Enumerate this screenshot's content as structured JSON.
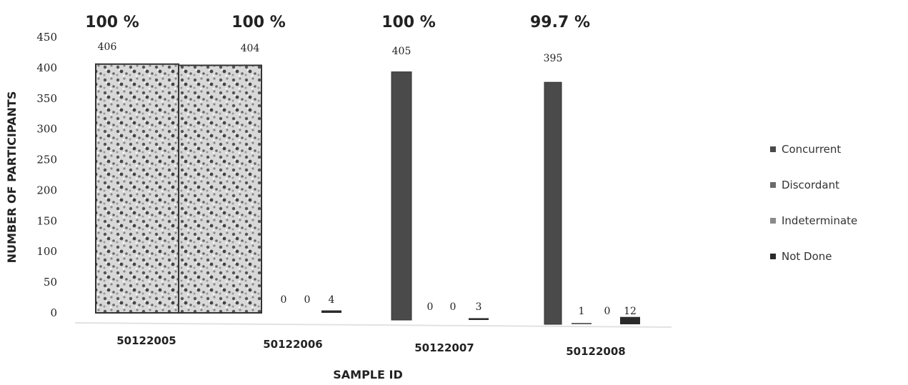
{
  "chart_data": {
    "type": "bar",
    "title": "",
    "xlabel": "SAMPLE ID",
    "ylabel": "NUMBER OF PARTICIPANTS",
    "ylim": [
      0,
      450
    ],
    "yticks": [
      0,
      50,
      100,
      150,
      200,
      250,
      300,
      350,
      400,
      450
    ],
    "categories": [
      "50122005",
      "50122006",
      "50122007",
      "50122008"
    ],
    "top_labels": [
      "100 %",
      "100 %",
      "100 %",
      "99.7 %"
    ],
    "series": [
      {
        "name": "Concurrent",
        "values": [
          406,
          404,
          405,
          395
        ],
        "color": "#4a4a4a"
      },
      {
        "name": "Discordant",
        "values": [
          0,
          0,
          0,
          1
        ],
        "color": "#6a6a6a"
      },
      {
        "name": "Indeterminate",
        "values": [
          0,
          0,
          0,
          0
        ],
        "color": "#8a8a8a"
      },
      {
        "name": "Not Done",
        "values": [
          0,
          4,
          3,
          12
        ],
        "color": "#2a2a2a"
      }
    ],
    "data_labels": [
      {
        "category": 0,
        "series": 0,
        "text": "406"
      },
      {
        "category": 1,
        "series": 0,
        "text": "404"
      },
      {
        "category": 1,
        "series": 1,
        "text": "0"
      },
      {
        "category": 1,
        "series": 2,
        "text": "0"
      },
      {
        "category": 1,
        "series": 3,
        "text": "4"
      },
      {
        "category": 2,
        "series": 0,
        "text": "405"
      },
      {
        "category": 2,
        "series": 1,
        "text": "0"
      },
      {
        "category": 2,
        "series": 2,
        "text": "0"
      },
      {
        "category": 2,
        "series": 3,
        "text": "3"
      },
      {
        "category": 3,
        "series": 0,
        "text": "395"
      },
      {
        "category": 3,
        "series": 1,
        "text": "1"
      },
      {
        "category": 3,
        "series": 2,
        "text": "0"
      },
      {
        "category": 3,
        "series": 3,
        "text": "12"
      }
    ],
    "legend_position": "right",
    "grid": false
  }
}
